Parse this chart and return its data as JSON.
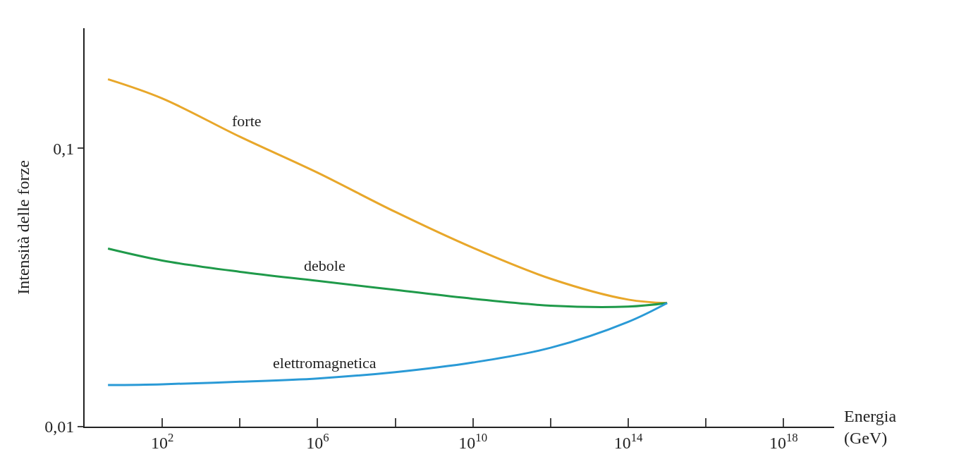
{
  "chart_data": {
    "type": "line",
    "xlabel": "Energia\n(GeV)",
    "ylabel": "Intensità delle forze",
    "log": "xy",
    "legend": false,
    "marker": "none",
    "line_style": "solid",
    "x": [
      4,
      100,
      10000,
      1000000,
      100000000,
      10000000000,
      1000000000000,
      100000000000000,
      1000000000000000
    ],
    "xlim": [
      1,
      20000000000000000000
    ],
    "xticks": [
      {
        "value": 100,
        "label": "10$^{2}$"
      },
      {
        "value": 10000,
        "label": null
      },
      {
        "value": 1000000,
        "label": "10$^{6}$"
      },
      {
        "value": 100000000,
        "label": null
      },
      {
        "value": 10000000000,
        "label": "10$^{10}$"
      },
      {
        "value": 1000000000000,
        "label": null
      },
      {
        "value": 100000000000000,
        "label": "10$^{14}$"
      },
      {
        "value": 10000000000000000,
        "label": null
      },
      {
        "value": 1000000000000000000,
        "label": "10$^{18}$"
      }
    ],
    "ylim": [
      0.01,
      0.27
    ],
    "yticks": [
      {
        "value": 0.01,
        "label": "0,01"
      },
      {
        "value": 0.1,
        "label": "0,1"
      }
    ],
    "series": [
      {
        "name": "forte",
        "color": "#e8a72a",
        "values": [
          0.177,
          0.151,
          0.11,
          0.0817,
          0.0591,
          0.0439,
          0.034,
          0.0286,
          0.0278
        ]
      },
      {
        "name": "debole",
        "color": "#1f9a4a",
        "values": [
          0.0436,
          0.0395,
          0.036,
          0.0334,
          0.031,
          0.0288,
          0.0272,
          0.027,
          0.0278
        ]
      },
      {
        "name": "elettromagnetica",
        "color": "#2a9ad6",
        "values": [
          0.0141,
          0.0142,
          0.0145,
          0.0149,
          0.0157,
          0.017,
          0.0192,
          0.0238,
          0.0278
        ]
      }
    ]
  }
}
